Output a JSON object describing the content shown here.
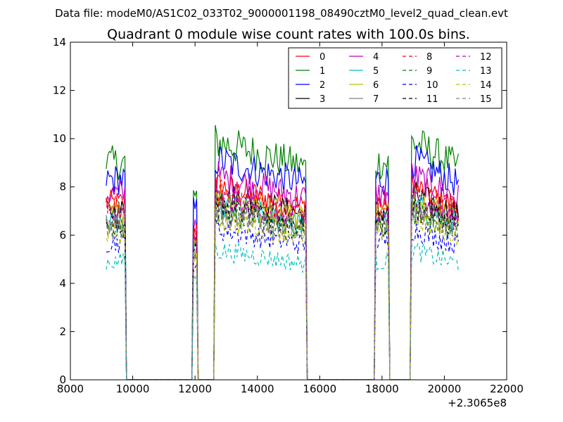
{
  "figure": {
    "suptitle": "Data file: modeM0/AS1C02_033T02_9000001198_08490cztM0_level2_quad_clean.evt"
  },
  "chart_data": {
    "type": "line",
    "title": "Quadrant 0 module wise count rates with 100.0s bins.",
    "xlabel": "",
    "ylabel": "",
    "x_offset_label": "+2.3065e8",
    "xlim": [
      8000,
      22000
    ],
    "ylim": [
      0,
      14
    ],
    "x_ticks": [
      8000,
      10000,
      12000,
      14000,
      16000,
      18000,
      20000,
      22000
    ],
    "y_ticks": [
      0,
      2,
      4,
      6,
      8,
      10,
      12,
      14
    ],
    "grid": false,
    "legend": {
      "placement": "top-right",
      "columns": 4
    },
    "series": [
      {
        "name": "0",
        "color": "#ff0000",
        "dash": "solid",
        "level": 7.3
      },
      {
        "name": "1",
        "color": "#008000",
        "dash": "solid",
        "level": 9.0
      },
      {
        "name": "2",
        "color": "#0000ff",
        "dash": "solid",
        "level": 8.3
      },
      {
        "name": "3",
        "color": "#000000",
        "dash": "solid",
        "level": 7.0
      },
      {
        "name": "4",
        "color": "#bf00bf",
        "dash": "solid",
        "level": 7.7
      },
      {
        "name": "5",
        "color": "#00bfbf",
        "dash": "solid",
        "level": 6.6
      },
      {
        "name": "6",
        "color": "#bfbf00",
        "dash": "solid",
        "level": 6.9
      },
      {
        "name": "7",
        "color": "#808080",
        "dash": "solid",
        "level": 6.4
      },
      {
        "name": "8",
        "color": "#ff0000",
        "dash": "dashed",
        "level": 7.1
      },
      {
        "name": "9",
        "color": "#008000",
        "dash": "dashed",
        "level": 6.3
      },
      {
        "name": "10",
        "color": "#0000ff",
        "dash": "dashed",
        "level": 5.7
      },
      {
        "name": "11",
        "color": "#000000",
        "dash": "dashed",
        "level": 6.5
      },
      {
        "name": "12",
        "color": "#bf00bf",
        "dash": "dashed",
        "level": 6.8
      },
      {
        "name": "13",
        "color": "#00bfbf",
        "dash": "dashed",
        "level": 4.9
      },
      {
        "name": "14",
        "color": "#bfbf00",
        "dash": "dashed",
        "level": 6.1
      },
      {
        "name": "15",
        "color": "#808080",
        "dash": "dashed",
        "level": 6.3
      }
    ],
    "series_note": "Each module's rate near its level during on-source intervals, near 0 during gaps",
    "active_intervals": [
      {
        "x": [
          9150,
          9750
        ],
        "spike_end": 9800
      },
      {
        "x": [
          11950,
          12050
        ],
        "spike_end": 12100
      },
      {
        "x": [
          12650,
          15550
        ],
        "spike_end": 15600
      },
      {
        "x": [
          17800,
          18200
        ],
        "spike_end": 18250
      },
      {
        "x": [
          18950,
          20450
        ],
        "spike_end": 20450
      }
    ]
  }
}
